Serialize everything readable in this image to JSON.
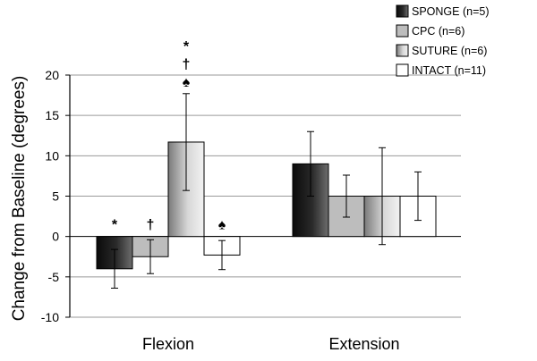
{
  "chart_data": {
    "type": "bar",
    "title": "",
    "xlabel": "",
    "ylabel": "Change from Baseline (degrees)",
    "ylim": [
      -10,
      20
    ],
    "yticks": [
      -10,
      -5,
      0,
      5,
      10,
      15,
      20
    ],
    "grid": true,
    "legend_position": "top-right",
    "categories": [
      "Flexion",
      "Extension"
    ],
    "series": [
      {
        "name": "SPONGE (n=5)",
        "values": [
          -4.0,
          9.0
        ],
        "errors": [
          2.4,
          4.0
        ],
        "annotations": [
          "*",
          ""
        ]
      },
      {
        "name": "CPC (n=6)",
        "values": [
          -2.5,
          5.0
        ],
        "errors": [
          2.1,
          2.6
        ],
        "annotations": [
          "†",
          ""
        ]
      },
      {
        "name": "SUTURE (n=6)",
        "values": [
          11.7,
          5.0
        ],
        "errors": [
          6.0,
          6.0
        ],
        "annotations": [
          "*\n†\n♠",
          ""
        ]
      },
      {
        "name": "INTACT (n=11)",
        "values": [
          -2.3,
          5.0
        ],
        "errors": [
          1.8,
          3.0
        ],
        "annotations": [
          "♠",
          ""
        ]
      }
    ],
    "colors": {
      "series_fills": [
        "sponge-gradient",
        "cpc-fill",
        "suture-gradient",
        "intact-fill"
      ],
      "grid": "#9a9a9a",
      "axis": "#000000"
    }
  }
}
